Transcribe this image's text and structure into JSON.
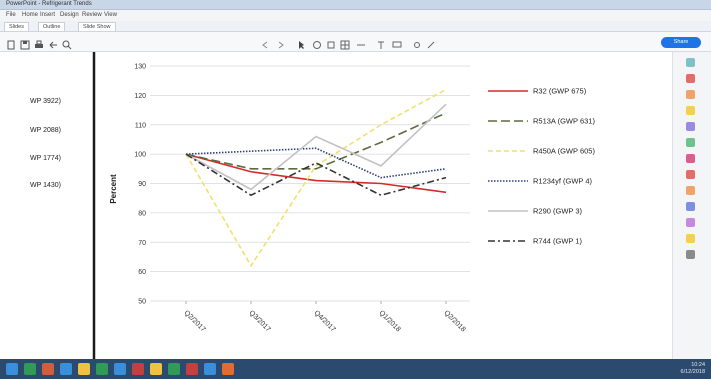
{
  "window": {
    "title": "PowerPoint - Refrigerant Trends",
    "menu": [
      "File",
      "Home",
      "Insert",
      "Design",
      "Review",
      "View"
    ],
    "tabs": [
      "Slides",
      "Outline",
      "Slide Show"
    ],
    "share_label": "Share",
    "clock_time": "10:24",
    "clock_date": "6/12/2018"
  },
  "left_labels": [
    "WP 3922)",
    "WP 2088)",
    "WP 1774)",
    "WP 1430)"
  ],
  "chart_data": {
    "type": "line",
    "categories": [
      "Q2/2017",
      "Q3/2017",
      "Q4/2017",
      "Q1/2018",
      "Q2/2018"
    ],
    "ylabel": "Percent",
    "ylim": [
      50,
      130
    ],
    "yticks": [
      "50",
      "60",
      "70",
      "80",
      "90",
      "100",
      "110",
      "120",
      "130"
    ],
    "grid": true,
    "legend_position": "right",
    "series": [
      {
        "name": "R32 (GWP 675)",
        "values": [
          100,
          94,
          91,
          90,
          87
        ],
        "color": "#d42a2a",
        "dash": "solid"
      },
      {
        "name": "R513A (GWP 631)",
        "values": [
          100,
          95,
          95,
          104,
          114
        ],
        "color": "#5d6b3e",
        "dash": "long-dash"
      },
      {
        "name": "R450A (GWP 605)",
        "values": [
          100,
          62,
          96,
          110,
          122
        ],
        "color": "#f0e16b",
        "dash": "dashed"
      },
      {
        "name": "R1234yf (GWP 4)",
        "values": [
          100,
          101,
          102,
          92,
          95
        ],
        "color": "#2c3e7a",
        "dash": "dotted"
      },
      {
        "name": "R290 (GWP 3)",
        "values": [
          100,
          88,
          106,
          96,
          117
        ],
        "color": "#c2c2c2",
        "dash": "solid"
      },
      {
        "name": "R744 (GWP 1)",
        "values": [
          100,
          86,
          97,
          86,
          92
        ],
        "color": "#333333",
        "dash": "dash-dot"
      }
    ]
  }
}
